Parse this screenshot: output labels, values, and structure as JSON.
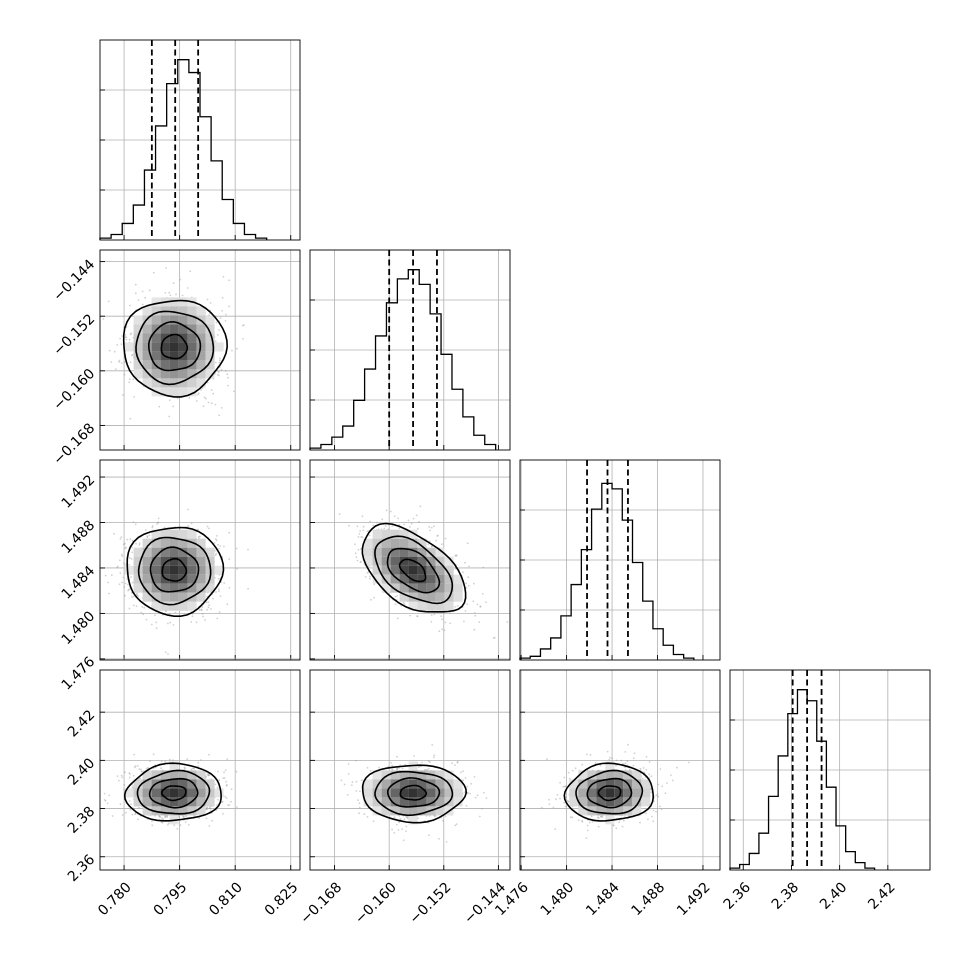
{
  "chart_data": {
    "type": "corner",
    "parameters": [
      {
        "ticks": [
          0.78,
          0.795,
          0.81,
          0.825
        ],
        "tick_labels": [
          "0.780",
          "0.795",
          "0.810",
          "0.825"
        ],
        "range": [
          0.7735,
          0.8275
        ],
        "mean": 0.7935,
        "sd": 0.006,
        "quantiles": [
          0.7875,
          0.7938,
          0.8
        ],
        "hist": [
          {
            "x0": 0.7735,
            "x1": 0.7765,
            "h": 0.01
          },
          {
            "x0": 0.7765,
            "x1": 0.7795,
            "h": 0.03
          },
          {
            "x0": 0.7795,
            "x1": 0.7825,
            "h": 0.09
          },
          {
            "x0": 0.7825,
            "x1": 0.7855,
            "h": 0.19
          },
          {
            "x0": 0.7855,
            "x1": 0.7885,
            "h": 0.38
          },
          {
            "x0": 0.7885,
            "x1": 0.7915,
            "h": 0.62
          },
          {
            "x0": 0.7915,
            "x1": 0.7945,
            "h": 0.85
          },
          {
            "x0": 0.7945,
            "x1": 0.7975,
            "h": 0.98
          },
          {
            "x0": 0.7975,
            "x1": 0.8005,
            "h": 0.91
          },
          {
            "x0": 0.8005,
            "x1": 0.8035,
            "h": 0.67
          },
          {
            "x0": 0.8035,
            "x1": 0.8065,
            "h": 0.43
          },
          {
            "x0": 0.8065,
            "x1": 0.8095,
            "h": 0.22
          },
          {
            "x0": 0.8095,
            "x1": 0.8125,
            "h": 0.09
          },
          {
            "x0": 0.8125,
            "x1": 0.8155,
            "h": 0.03
          },
          {
            "x0": 0.8155,
            "x1": 0.8185,
            "h": 0.01
          }
        ]
      },
      {
        "ticks": [
          -0.168,
          -0.16,
          -0.152,
          -0.144
        ],
        "tick_labels": [
          "−0.168",
          "−0.160",
          "−0.152",
          "−0.144"
        ],
        "range": [
          -0.1716,
          -0.1423
        ],
        "mean": -0.1565,
        "sd": 0.0035,
        "quantiles": [
          -0.16,
          -0.1565,
          -0.153
        ],
        "hist": [
          {
            "x0": -0.1716,
            "x1": -0.17,
            "h": 0.01
          },
          {
            "x0": -0.17,
            "x1": -0.1684,
            "h": 0.03
          },
          {
            "x0": -0.1684,
            "x1": -0.1668,
            "h": 0.07
          },
          {
            "x0": -0.1668,
            "x1": -0.1652,
            "h": 0.13
          },
          {
            "x0": -0.1652,
            "x1": -0.1636,
            "h": 0.27
          },
          {
            "x0": -0.1636,
            "x1": -0.162,
            "h": 0.44
          },
          {
            "x0": -0.162,
            "x1": -0.1604,
            "h": 0.62
          },
          {
            "x0": -0.1604,
            "x1": -0.1588,
            "h": 0.8
          },
          {
            "x0": -0.1588,
            "x1": -0.1572,
            "h": 0.93
          },
          {
            "x0": -0.1572,
            "x1": -0.1556,
            "h": 0.98
          },
          {
            "x0": -0.1556,
            "x1": -0.154,
            "h": 0.9
          },
          {
            "x0": -0.154,
            "x1": -0.1524,
            "h": 0.74
          },
          {
            "x0": -0.1524,
            "x1": -0.1508,
            "h": 0.52
          },
          {
            "x0": -0.1508,
            "x1": -0.1492,
            "h": 0.33
          },
          {
            "x0": -0.1492,
            "x1": -0.1476,
            "h": 0.18
          },
          {
            "x0": -0.1476,
            "x1": -0.146,
            "h": 0.08
          },
          {
            "x0": -0.146,
            "x1": -0.1444,
            "h": 0.03
          }
        ]
      },
      {
        "ticks": [
          1.476,
          1.48,
          1.484,
          1.488,
          1.492
        ],
        "tick_labels": [
          "1.476",
          "1.480",
          "1.484",
          "1.488",
          "1.492"
        ],
        "range": [
          1.4759,
          1.4935
        ],
        "mean": 1.4838,
        "sd": 0.0018,
        "quantiles": [
          1.4818,
          1.4836,
          1.4854
        ],
        "hist": [
          {
            "x0": 1.4759,
            "x1": 1.4768,
            "h": 0.01
          },
          {
            "x0": 1.4768,
            "x1": 1.4777,
            "h": 0.02
          },
          {
            "x0": 1.4777,
            "x1": 1.4786,
            "h": 0.06
          },
          {
            "x0": 1.4786,
            "x1": 1.4795,
            "h": 0.12
          },
          {
            "x0": 1.4795,
            "x1": 1.4804,
            "h": 0.24
          },
          {
            "x0": 1.4804,
            "x1": 1.4813,
            "h": 0.41
          },
          {
            "x0": 1.4813,
            "x1": 1.4822,
            "h": 0.6
          },
          {
            "x0": 1.4822,
            "x1": 1.4831,
            "h": 0.82
          },
          {
            "x0": 1.4831,
            "x1": 1.484,
            "h": 0.96
          },
          {
            "x0": 1.484,
            "x1": 1.4849,
            "h": 0.93
          },
          {
            "x0": 1.4849,
            "x1": 1.4858,
            "h": 0.76
          },
          {
            "x0": 1.4858,
            "x1": 1.4867,
            "h": 0.53
          },
          {
            "x0": 1.4867,
            "x1": 1.4876,
            "h": 0.32
          },
          {
            "x0": 1.4876,
            "x1": 1.4885,
            "h": 0.17
          },
          {
            "x0": 1.4885,
            "x1": 1.4894,
            "h": 0.08
          },
          {
            "x0": 1.4894,
            "x1": 1.4903,
            "h": 0.03
          },
          {
            "x0": 1.4903,
            "x1": 1.4912,
            "h": 0.01
          }
        ]
      },
      {
        "ticks": [
          2.36,
          2.38,
          2.4,
          2.42
        ],
        "tick_labels": [
          "2.36",
          "2.38",
          "2.40",
          "2.42"
        ],
        "range": [
          2.3545,
          2.4375
        ],
        "mean": 2.3865,
        "sd": 0.0055,
        "quantiles": [
          2.3805,
          2.3865,
          2.3925
        ],
        "hist": [
          {
            "x0": 2.3545,
            "x1": 2.3585,
            "h": 0.01
          },
          {
            "x0": 2.3585,
            "x1": 2.3625,
            "h": 0.03
          },
          {
            "x0": 2.3625,
            "x1": 2.3665,
            "h": 0.09
          },
          {
            "x0": 2.3665,
            "x1": 2.3705,
            "h": 0.2
          },
          {
            "x0": 2.3705,
            "x1": 2.3745,
            "h": 0.4
          },
          {
            "x0": 2.3745,
            "x1": 2.3785,
            "h": 0.62
          },
          {
            "x0": 2.3785,
            "x1": 2.3825,
            "h": 0.85
          },
          {
            "x0": 2.3825,
            "x1": 2.3865,
            "h": 0.98
          },
          {
            "x0": 2.3865,
            "x1": 2.3905,
            "h": 0.92
          },
          {
            "x0": 2.3905,
            "x1": 2.3945,
            "h": 0.7
          },
          {
            "x0": 2.3945,
            "x1": 2.3985,
            "h": 0.45
          },
          {
            "x0": 2.3985,
            "x1": 2.4025,
            "h": 0.24
          },
          {
            "x0": 2.4025,
            "x1": 2.4065,
            "h": 0.1
          },
          {
            "x0": 2.4065,
            "x1": 2.4105,
            "h": 0.04
          },
          {
            "x0": 2.4105,
            "x1": 2.4145,
            "h": 0.01
          }
        ]
      }
    ],
    "correlations": {
      "1_0": 0.0,
      "2_0": 0.0,
      "2_1": -0.5,
      "3_0": 0.05,
      "3_1": 0.0,
      "3_2": 0.05
    },
    "contour_levels_sigma": [
      0.5,
      1.0,
      1.5,
      2.0
    ],
    "grid": true,
    "colors": {
      "line": "#000000",
      "points": "#9a9a9a",
      "grid": "#b0b0b0",
      "density_low": "#ffffff",
      "density_high": "#2e2e2e"
    }
  }
}
